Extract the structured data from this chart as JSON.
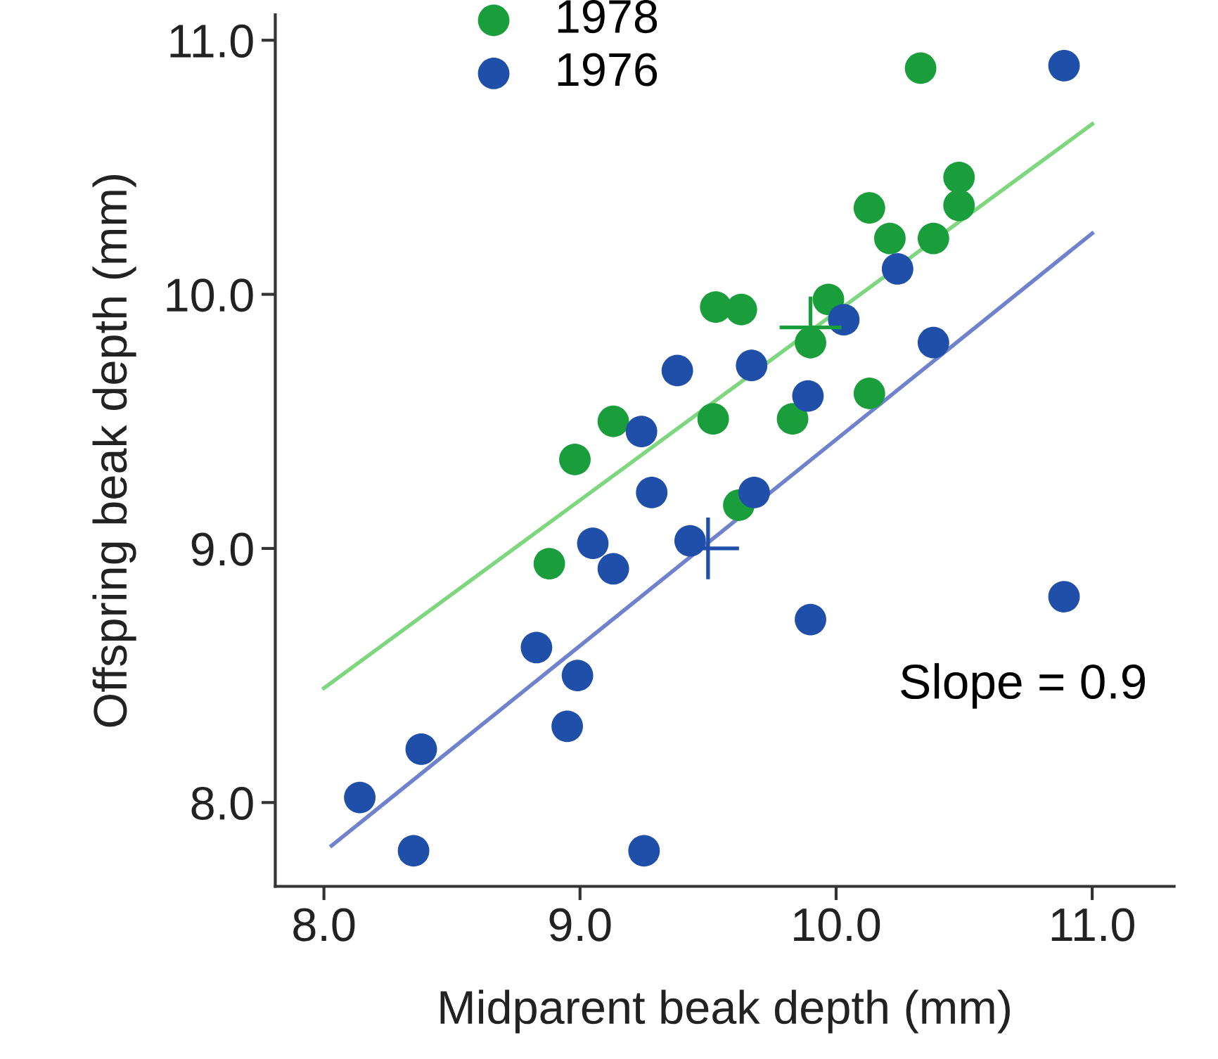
{
  "chart_data": {
    "type": "scatter",
    "xlabel": "Midparent beak depth (mm)",
    "ylabel": "Offspring beak depth (mm)",
    "xlim": [
      7.81,
      11.32
    ],
    "ylim": [
      7.67,
      11.1
    ],
    "xticks": [
      {
        "value": 8,
        "label": "8.0"
      },
      {
        "value": 9,
        "label": "9.0"
      },
      {
        "value": 10,
        "label": "10.0"
      },
      {
        "value": 11,
        "label": "11.0"
      }
    ],
    "yticks": [
      {
        "value": 8,
        "label": "8.0"
      },
      {
        "value": 9,
        "label": "9.0"
      },
      {
        "value": 10,
        "label": "10.0"
      },
      {
        "value": 11,
        "label": "11.0"
      }
    ],
    "grid": false,
    "legend": "top left",
    "marker": "circle",
    "annotations": [
      "Slope = 0.9"
    ],
    "series": [
      {
        "name": "1978",
        "color": "#1a9e3c",
        "x": [
          10.33,
          10.48,
          10.13,
          10.21,
          10.38,
          10.48,
          9.53,
          9.63,
          9.97,
          9.9,
          10.13,
          9.52,
          9.83,
          9.13,
          8.98,
          9.62,
          8.88
        ],
        "values": [
          10.89,
          10.46,
          10.34,
          10.22,
          10.22,
          10.35,
          9.95,
          9.94,
          9.98,
          9.81,
          9.61,
          9.51,
          9.51,
          9.5,
          9.35,
          9.17,
          8.94
        ]
      },
      {
        "name": "1976",
        "color": "#1f4fa8",
        "x": [
          10.89,
          10.24,
          10.03,
          10.38,
          9.38,
          9.67,
          9.89,
          9.24,
          9.28,
          9.68,
          9.05,
          9.43,
          9.13,
          9.9,
          10.89,
          8.83,
          8.99,
          8.95,
          8.38,
          8.14,
          8.35,
          9.25
        ],
        "values": [
          10.9,
          10.1,
          9.9,
          9.81,
          9.7,
          9.72,
          9.6,
          9.46,
          9.22,
          9.22,
          9.02,
          9.03,
          8.92,
          8.72,
          8.81,
          8.61,
          8.5,
          8.3,
          8.21,
          8.02,
          7.81,
          7.81
        ]
      },
      {
        "type": "line",
        "color": "#7ed67e",
        "x": [
          8.0,
          11.0
        ],
        "values": [
          8.45,
          10.67
        ],
        "marker": "none"
      },
      {
        "type": "line",
        "color": "#6f82cc",
        "x": [
          8.03,
          11.0
        ],
        "values": [
          7.83,
          10.24
        ],
        "marker": "none"
      },
      {
        "color": "#1a9e3c",
        "x": [
          9.9
        ],
        "values": [
          9.87
        ],
        "marker": "cross"
      },
      {
        "color": "#1f4fa8",
        "x": [
          9.5
        ],
        "values": [
          9.0
        ],
        "marker": "cross"
      }
    ]
  }
}
